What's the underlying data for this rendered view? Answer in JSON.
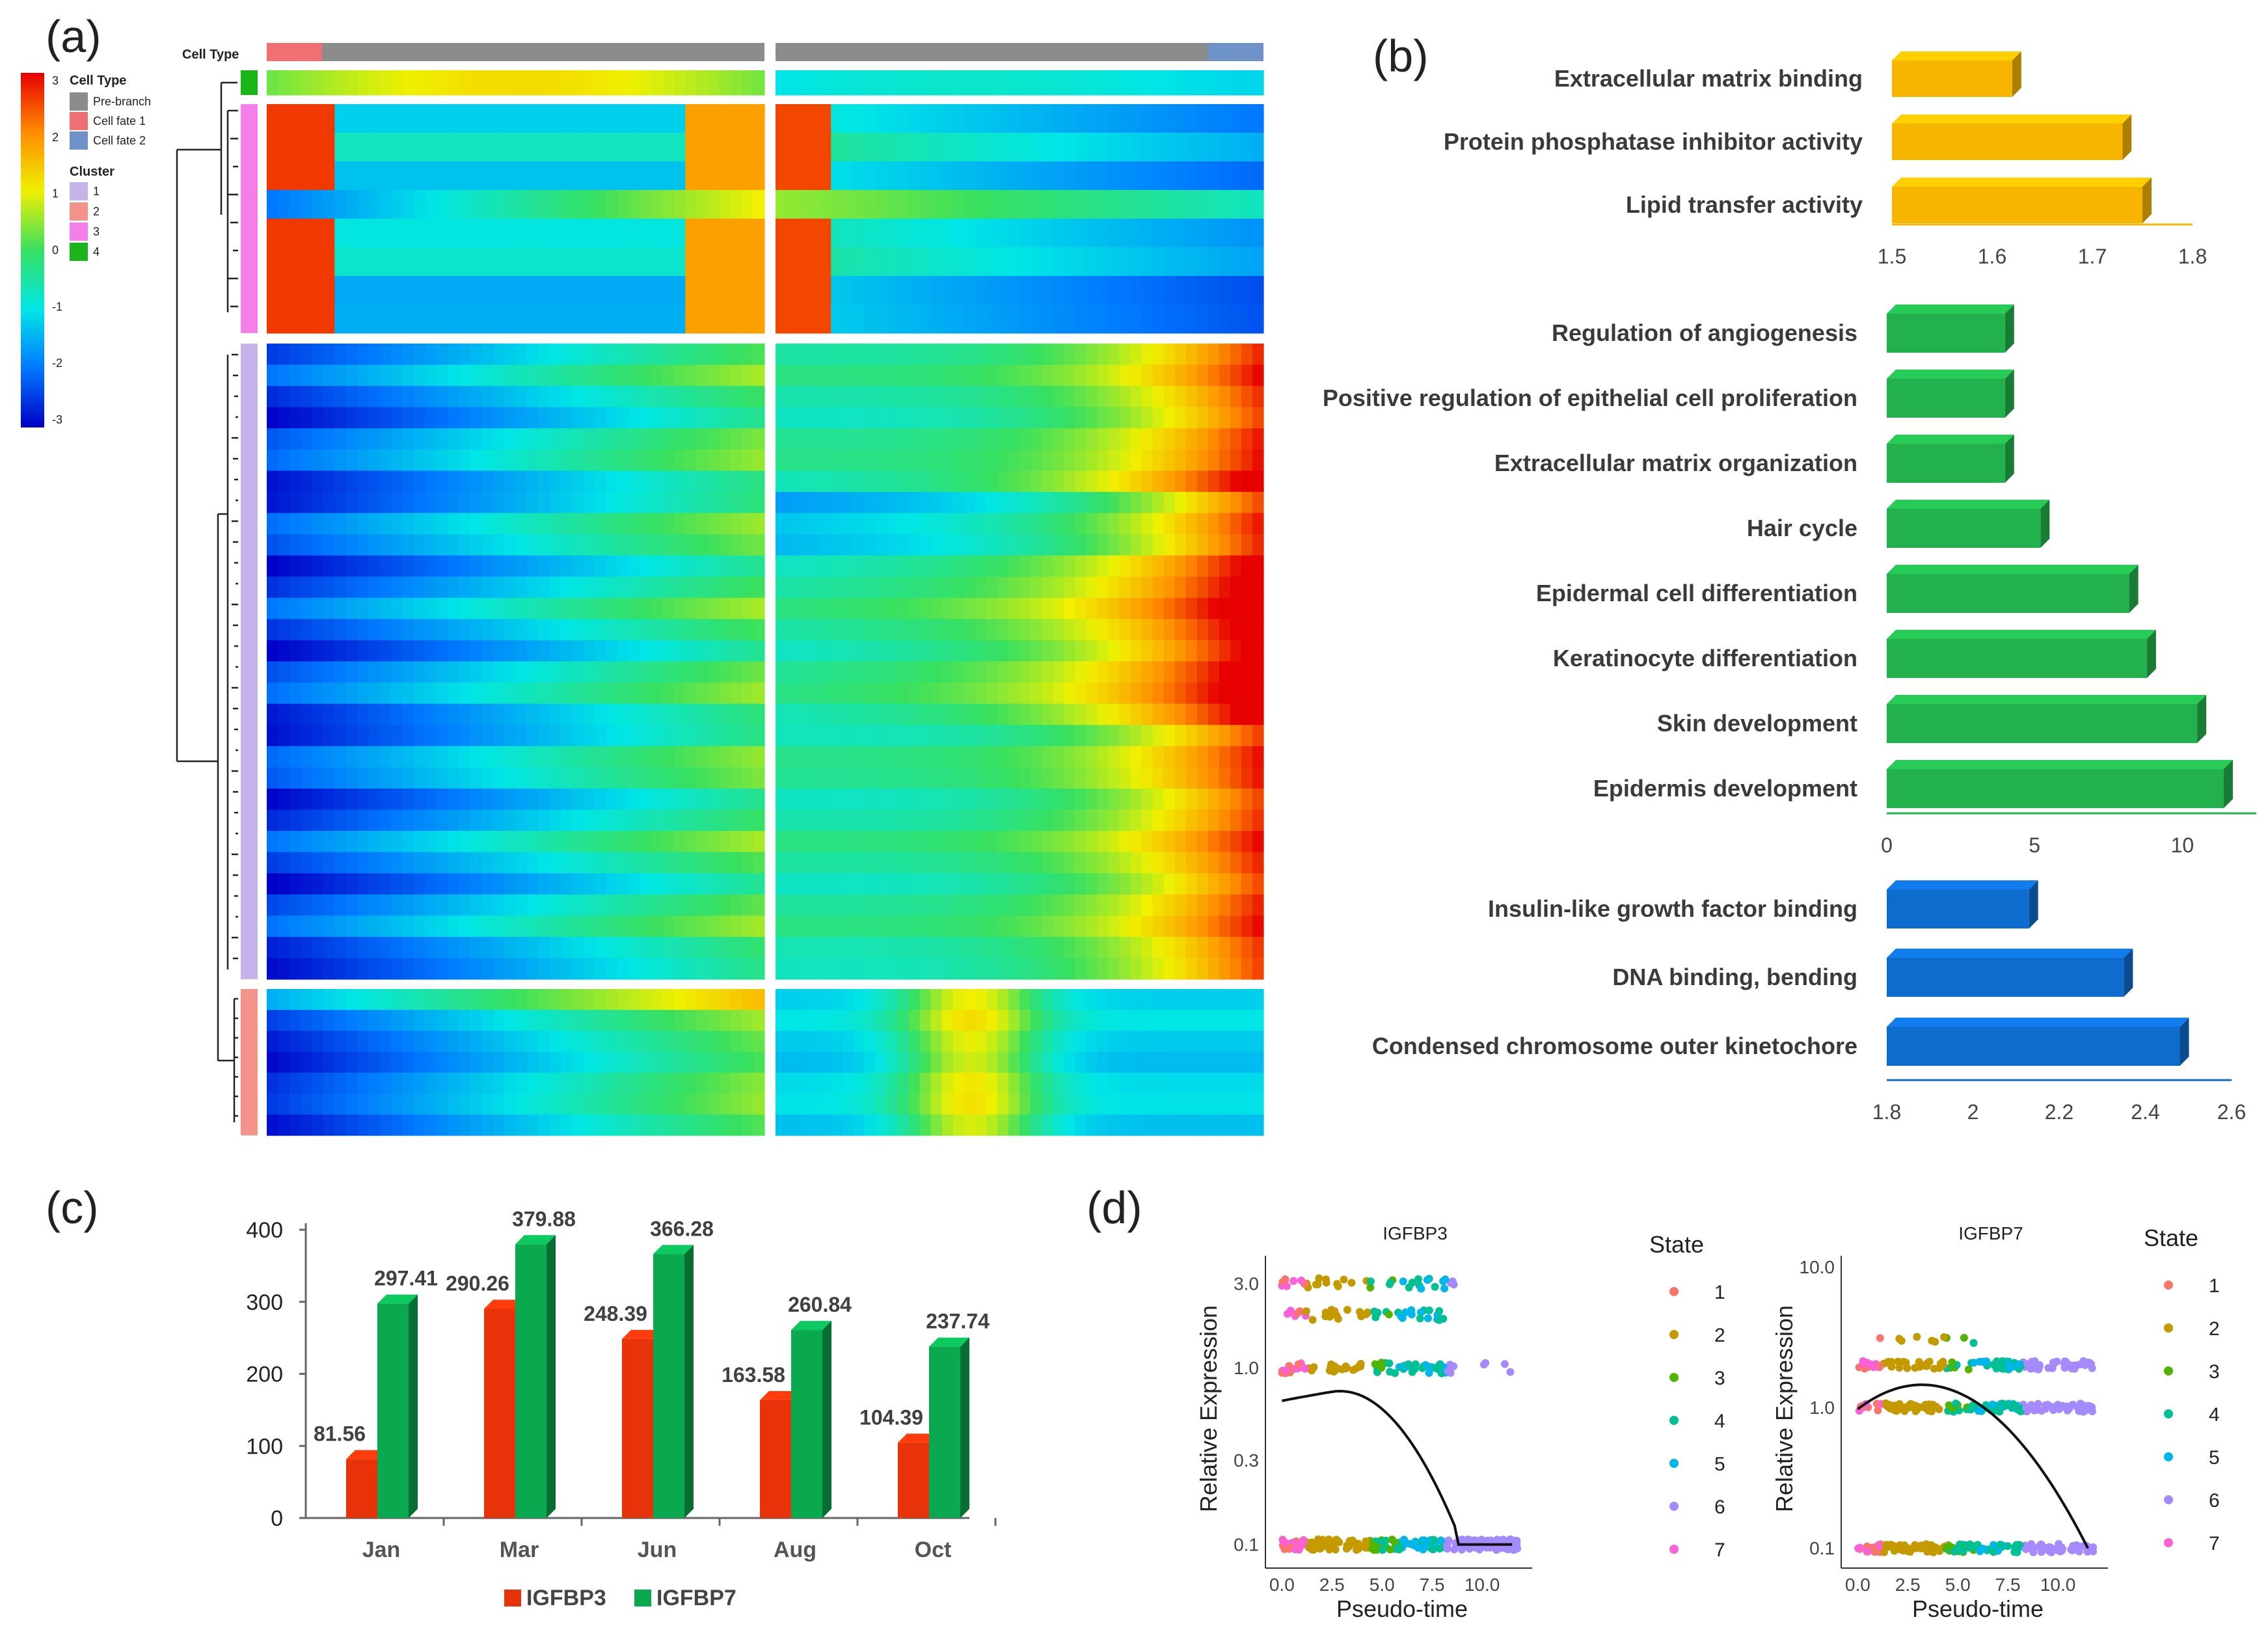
{
  "panels": {
    "a": "(a)",
    "b": "(b)",
    "c": "(c)",
    "d": "(d)"
  },
  "chart_data": [
    {
      "panel": "a",
      "type": "heatmap",
      "title": "",
      "annotation_title": "Cell Type",
      "color_scale": {
        "min": -3,
        "max": 3,
        "ticks": [
          3,
          2,
          1,
          0,
          -1,
          -2,
          -3
        ],
        "colors": [
          "#0000c8",
          "#0078ff",
          "#00e6e6",
          "#38e060",
          "#f0f000",
          "#ff8c00",
          "#e60000"
        ]
      },
      "legend": {
        "cell_type_title": "Cell Type",
        "cell_types": [
          {
            "label": "Pre-branch",
            "color": "#8c8c8c"
          },
          {
            "label": "Cell fate 1",
            "color": "#ef6f73"
          },
          {
            "label": "Cell fate 2",
            "color": "#6f93c9"
          }
        ],
        "cluster_title": "Cluster",
        "clusters": [
          {
            "label": "1",
            "color": "#c6b3ea"
          },
          {
            "label": "2",
            "color": "#f4938a"
          },
          {
            "label": "3",
            "color": "#f47fe8"
          },
          {
            "label": "4",
            "color": "#19b519"
          }
        ]
      },
      "row_blocks": [
        {
          "cluster": "4",
          "rows": 1
        },
        {
          "cluster": "3",
          "rows": 8
        },
        {
          "cluster": "1",
          "rows": 30
        },
        {
          "cluster": "2",
          "rows": 7
        }
      ]
    },
    {
      "panel": "b",
      "type": "bar",
      "orientation": "horizontal",
      "groups": [
        {
          "name": "blue-orange",
          "color": "#f7b500",
          "categories": [
            "Extracellular matrix binding",
            "Protein phosphatase inhibitor activity",
            "Lipid transfer activity"
          ],
          "values": [
            1.62,
            1.73,
            1.75
          ],
          "xlim": [
            1.5,
            1.8
          ],
          "ticks": [
            "1.5",
            "1.6",
            "1.7",
            "1.8"
          ]
        },
        {
          "name": "green",
          "color": "#22b14c",
          "categories": [
            "Regulation of angiogenesis",
            "Positive regulation of epithelial cell proliferation",
            "Extracellular matrix organization",
            "Hair cycle",
            "Epidermal cell differentiation",
            "Keratinocyte differentiation",
            "Skin development",
            "Epidermis development"
          ],
          "values": [
            4,
            4,
            4,
            5.2,
            8.2,
            8.8,
            10.5,
            11.4
          ],
          "xlim": [
            0,
            12.5
          ],
          "ticks": [
            "0",
            "5",
            "10"
          ]
        },
        {
          "name": "blue",
          "color": "#0f6ccf",
          "categories": [
            "Insulin-like growth factor binding",
            "DNA binding, bending",
            "Condensed chromosome outer kinetochore"
          ],
          "values": [
            2.13,
            2.35,
            2.48
          ],
          "xlim": [
            1.8,
            2.6
          ],
          "ticks": [
            "1.8",
            "2",
            "2.2",
            "2.4",
            "2.6"
          ]
        }
      ]
    },
    {
      "panel": "c",
      "type": "bar",
      "categories": [
        "Jan",
        "Mar",
        "Jun",
        "Aug",
        "Oct"
      ],
      "series": [
        {
          "name": "IGFBP3",
          "color": "#e8330a",
          "values": [
            81.56,
            290.26,
            248.39,
            163.58,
            104.39
          ],
          "labels": [
            "81.56",
            "290.26",
            "248.39",
            "163.58",
            "104.39"
          ]
        },
        {
          "name": "IGFBP7",
          "color": "#0aa84f",
          "values": [
            297.41,
            379.88,
            366.28,
            260.84,
            237.74
          ],
          "labels": [
            "297.41",
            "379.88",
            "366.28",
            "260.84",
            "237.74"
          ]
        }
      ],
      "ylim": [
        0,
        400
      ],
      "yticks": [
        "0",
        "100",
        "200",
        "300",
        "400"
      ]
    },
    {
      "panel": "d",
      "type": "scatter",
      "xlabel": "Pseudo-time",
      "ylabel": "Relative Expression",
      "legend_title": "State",
      "states": [
        {
          "label": "1",
          "color": "#f8766d"
        },
        {
          "label": "2",
          "color": "#c49a00"
        },
        {
          "label": "3",
          "color": "#53b400"
        },
        {
          "label": "4",
          "color": "#00c094"
        },
        {
          "label": "5",
          "color": "#00b6eb"
        },
        {
          "label": "6",
          "color": "#a58aff"
        },
        {
          "label": "7",
          "color": "#fb61d7"
        }
      ],
      "plots": [
        {
          "title": "IGFBP3",
          "xticks": [
            "0.0",
            "2.5",
            "5.0",
            "7.5",
            "10.0"
          ],
          "yticks": [
            "0.1",
            "0.3",
            "1.0",
            "3.0"
          ],
          "xlim": [
            -0.5,
            12.5
          ]
        },
        {
          "title": "IGFBP7",
          "xticks": [
            "0.0",
            "2.5",
            "5.0",
            "7.5",
            "10.0"
          ],
          "yticks": [
            "0.1",
            "1.0",
            "10.0"
          ],
          "xlim": [
            -0.5,
            12.5
          ]
        }
      ]
    }
  ]
}
